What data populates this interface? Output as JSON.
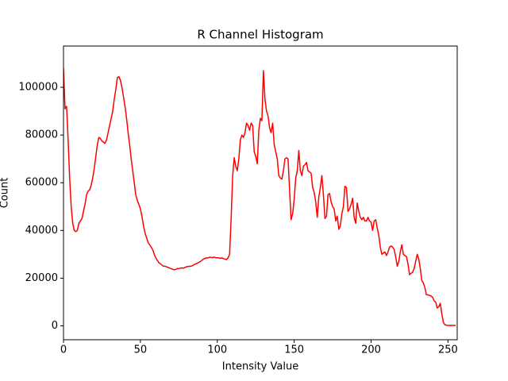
{
  "chart_data": {
    "type": "line",
    "title": "R Channel Histogram",
    "x_label": "Intensity Value",
    "y_label": "Count",
    "x": [
      0,
      1,
      2,
      3,
      4,
      5,
      6,
      7,
      8,
      9,
      10,
      11,
      12,
      13,
      14,
      15,
      16,
      17,
      18,
      19,
      20,
      21,
      22,
      23,
      24,
      25,
      26,
      27,
      28,
      29,
      30,
      31,
      32,
      33,
      34,
      35,
      36,
      37,
      38,
      39,
      40,
      41,
      42,
      43,
      44,
      45,
      46,
      47,
      48,
      49,
      50,
      51,
      52,
      53,
      54,
      55,
      56,
      57,
      58,
      59,
      60,
      61,
      62,
      63,
      64,
      65,
      66,
      67,
      68,
      69,
      70,
      71,
      72,
      73,
      74,
      75,
      76,
      77,
      78,
      79,
      80,
      81,
      82,
      83,
      84,
      85,
      86,
      87,
      88,
      89,
      90,
      91,
      92,
      93,
      94,
      95,
      96,
      97,
      98,
      99,
      100,
      101,
      102,
      103,
      104,
      105,
      106,
      107,
      108,
      109,
      110,
      111,
      112,
      113,
      114,
      115,
      116,
      117,
      118,
      119,
      120,
      121,
      122,
      123,
      124,
      125,
      126,
      127,
      128,
      129,
      130,
      131,
      132,
      133,
      134,
      135,
      136,
      137,
      138,
      139,
      140,
      141,
      142,
      143,
      144,
      145,
      146,
      147,
      148,
      149,
      150,
      151,
      152,
      153,
      154,
      155,
      156,
      157,
      158,
      159,
      160,
      161,
      162,
      163,
      164,
      165,
      166,
      167,
      168,
      169,
      170,
      171,
      172,
      173,
      174,
      175,
      176,
      177,
      178,
      179,
      180,
      181,
      182,
      183,
      184,
      185,
      186,
      187,
      188,
      189,
      190,
      191,
      192,
      193,
      194,
      195,
      196,
      197,
      198,
      199,
      200,
      201,
      202,
      203,
      204,
      205,
      206,
      207,
      208,
      209,
      210,
      211,
      212,
      213,
      214,
      215,
      216,
      217,
      218,
      219,
      220,
      221,
      222,
      223,
      224,
      225,
      226,
      227,
      228,
      229,
      230,
      231,
      232,
      233,
      234,
      235,
      236,
      237,
      238,
      239,
      240,
      241,
      242,
      243,
      244,
      245,
      246,
      247,
      248,
      249,
      250,
      251,
      252,
      253,
      254,
      255
    ],
    "values": [
      108000,
      91000,
      92000,
      78000,
      62000,
      50000,
      43000,
      40000,
      39500,
      40000,
      43000,
      44000,
      45000,
      48000,
      51000,
      55000,
      56500,
      57000,
      59000,
      62000,
      66000,
      71000,
      76000,
      79000,
      78500,
      77500,
      77000,
      76500,
      78000,
      81000,
      84000,
      87000,
      90000,
      95000,
      99000,
      104000,
      104500,
      103000,
      100000,
      96000,
      92000,
      87000,
      81000,
      76000,
      70000,
      65000,
      60000,
      55000,
      52500,
      51000,
      49000,
      46000,
      42000,
      39000,
      37000,
      35000,
      34000,
      33000,
      32000,
      30000,
      28500,
      27500,
      26500,
      26000,
      25500,
      25000,
      25000,
      24800,
      24500,
      24200,
      24000,
      23700,
      23500,
      23700,
      24000,
      24000,
      24200,
      24300,
      24200,
      24500,
      24800,
      24900,
      25000,
      25000,
      25300,
      25700,
      26000,
      26300,
      26600,
      27000,
      27500,
      28000,
      28300,
      28500,
      28500,
      28800,
      28700,
      28600,
      28800,
      28600,
      28500,
      28500,
      28300,
      28500,
      28200,
      28000,
      27800,
      28500,
      30000,
      45000,
      63000,
      70500,
      67000,
      65000,
      70000,
      78000,
      80000,
      79000,
      81000,
      85000,
      84000,
      82000,
      85000,
      84000,
      73000,
      71000,
      68000,
      82000,
      87000,
      86000,
      107000,
      95000,
      90000,
      88000,
      83000,
      81000,
      85000,
      76000,
      73000,
      70000,
      63000,
      62000,
      61500,
      65000,
      70000,
      70500,
      70000,
      57000,
      44500,
      47000,
      53000,
      62000,
      65000,
      73500,
      65000,
      63000,
      67000,
      67500,
      68500,
      65000,
      64500,
      64000,
      58000,
      56000,
      52000,
      45500,
      54000,
      58000,
      63000,
      55000,
      45000,
      46000,
      55000,
      55500,
      52000,
      50000,
      49000,
      44000,
      46000,
      40500,
      42000,
      47000,
      50000,
      58500,
      58000,
      48000,
      49000,
      51000,
      53500,
      45500,
      43000,
      51500,
      48000,
      45500,
      44500,
      45500,
      44000,
      44000,
      45500,
      44000,
      43500,
      40000,
      44000,
      44500,
      41000,
      38000,
      33000,
      30000,
      30500,
      31000,
      29500,
      31000,
      33000,
      33500,
      33000,
      32000,
      29000,
      25000,
      27000,
      31000,
      34000,
      30000,
      29500,
      29000,
      26000,
      21500,
      22000,
      22500,
      24000,
      27000,
      30000,
      28000,
      24000,
      19000,
      18000,
      16000,
      13000,
      13000,
      12800,
      12500,
      12000,
      10500,
      10000,
      7500,
      8000,
      9500,
      5000,
      1500,
      500,
      300,
      200,
      200,
      200,
      200,
      200,
      200
    ],
    "color": "red",
    "xlim": [
      0,
      256
    ],
    "xticks": [
      0,
      50,
      100,
      150,
      200,
      250
    ],
    "ylim": [
      -5800,
      117300
    ],
    "yticks": [
      0,
      20000,
      40000,
      60000,
      80000,
      100000
    ],
    "grid": false
  }
}
